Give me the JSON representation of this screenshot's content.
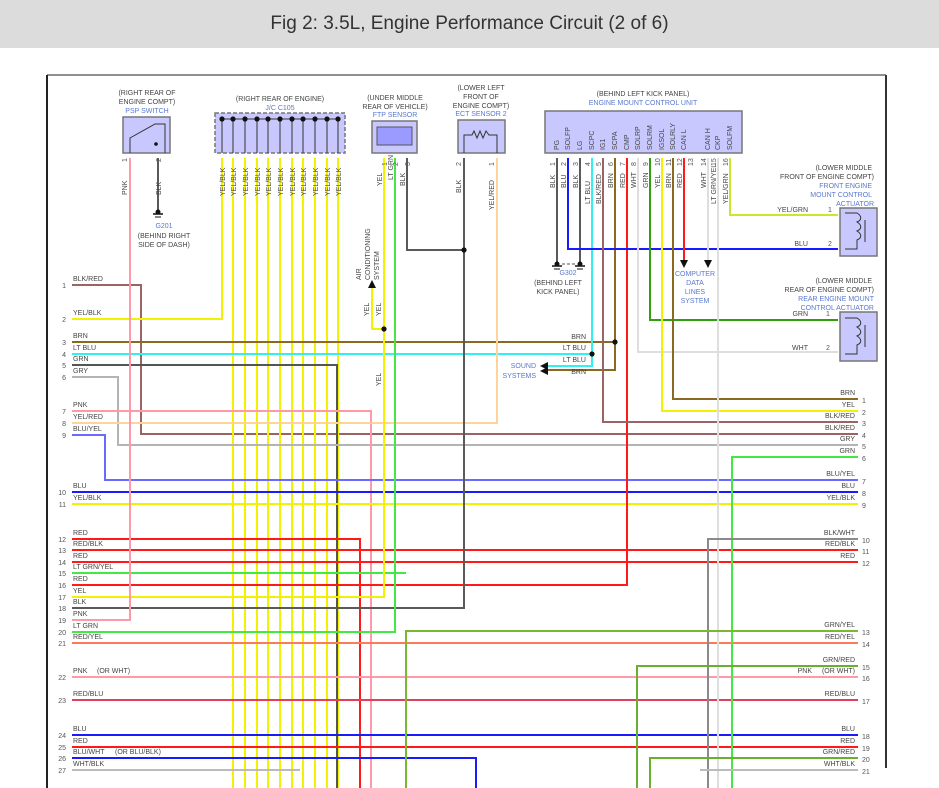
{
  "title": "Fig 2: 3.5L, Engine Performance Circuit (2 of 6)",
  "components": {
    "psp": {
      "loc1": "(RIGHT REAR OF",
      "loc2": "ENGINE COMPT)",
      "name": "PSP SWITCH",
      "pins": [
        "1",
        "2"
      ],
      "wires": [
        "PNK",
        "BLK"
      ]
    },
    "g201": {
      "name": "G201",
      "loc1": "(BEHIND RIGHT",
      "loc2": "SIDE OF DASH)"
    },
    "jc": {
      "loc1": "(RIGHT REAR OF ENGINE)",
      "name": "J/C C105",
      "wire": "YEL/BLK"
    },
    "ftp": {
      "loc1": "(UNDER MIDDLE",
      "loc2": "REAR OF VEHICLE)",
      "name": "FTP SENSOR",
      "pins": [
        "1",
        "2",
        "3"
      ],
      "wires": [
        "YEL",
        "LT GRN",
        "BLK"
      ]
    },
    "ect": {
      "loc1": "(LOWER LEFT",
      "loc2": "FRONT OF",
      "loc3": "ENGINE COMPT)",
      "name": "ECT SENSOR 2",
      "pins": [
        "2",
        "1"
      ],
      "wires": [
        "BLK",
        "YEL/RED"
      ]
    },
    "ecu": {
      "loc1": "(BEHIND LEFT KICK PANEL)",
      "name": "ENGINE MOUNT CONTROL UNIT",
      "pins": [
        {
          "num": "1",
          "name": "PG",
          "wire": "BLK"
        },
        {
          "num": "2",
          "name": "SOLFP",
          "wire": "BLU"
        },
        {
          "num": "3",
          "name": "LG",
          "wire": "BLK"
        },
        {
          "num": "4",
          "name": "SCPC",
          "wire": "LT BLU"
        },
        {
          "num": "5",
          "name": "IG1",
          "wire": "BLK/RED"
        },
        {
          "num": "6",
          "name": "SCPA",
          "wire": "BRN"
        },
        {
          "num": "7",
          "name": "CMP",
          "wire": "RED"
        },
        {
          "num": "8",
          "name": "SOLRP",
          "wire": "WHT"
        },
        {
          "num": "9",
          "name": "SOLRM",
          "wire": "GRN"
        },
        {
          "num": "10",
          "name": "IGSOL",
          "wire": "YEL"
        },
        {
          "num": "11",
          "name": "SOLRLY",
          "wire": "BRN"
        },
        {
          "num": "12",
          "name": "CAN L",
          "wire": "RED"
        },
        {
          "num": "13",
          "name": "",
          "wire": ""
        },
        {
          "num": "14",
          "name": "CAN H",
          "wire": "WHT"
        },
        {
          "num": "15",
          "name": "CKP",
          "wire": "LT GRN/YEL"
        },
        {
          "num": "16",
          "name": "SOLFM",
          "wire": "YEL/GRN"
        }
      ]
    },
    "g302": {
      "name": "G302",
      "loc1": "(BEHIND LEFT",
      "loc2": "KICK PANEL)"
    },
    "front_act": {
      "loc1": "(LOWER MIDDLE",
      "loc2": "FRONT OF ENGINE COMPT)",
      "name1": "FRONT ENGINE",
      "name2": "MOUNT CONTROL",
      "name3": "ACTUATOR",
      "pins": [
        "1",
        "2"
      ],
      "wires": [
        "YEL/GRN",
        "BLU"
      ]
    },
    "rear_act": {
      "loc1": "(LOWER MIDDLE",
      "loc2": "REAR OF ENGINE COMPT)",
      "name1": "REAR ENGINE MOUNT",
      "name2": "CONTROL ACTUATOR",
      "pins": [
        "1",
        "2"
      ],
      "wires": [
        "GRN",
        "WHT"
      ]
    },
    "ac": {
      "l1": "AIR",
      "l2": "CONDITIONING",
      "l3": "SYSTEM",
      "wire1": "YEL",
      "wire2": "YEL",
      "wire3": "YEL"
    },
    "sound": {
      "l1": "SOUND",
      "l2": "SYSTEMS",
      "w1": "BRN",
      "w2": "LT BLU",
      "w3": "LT BLU",
      "w4": "BRN"
    },
    "cdl": {
      "l1": "COMPUTER",
      "l2": "DATA",
      "l3": "LINES",
      "l4": "SYSTEM"
    }
  },
  "left_pins": [
    {
      "num": "1",
      "label": "BLK/RED"
    },
    {
      "num": "2",
      "label": "YEL/BLK"
    },
    {
      "num": "3",
      "label": "BRN"
    },
    {
      "num": "4",
      "label": "LT BLU"
    },
    {
      "num": "5",
      "label": "GRN"
    },
    {
      "num": "6",
      "label": "GRY"
    },
    {
      "num": "7",
      "label": "PNK"
    },
    {
      "num": "8",
      "label": "YEL/RED"
    },
    {
      "num": "9",
      "label": "BLU/YEL"
    },
    {
      "num": "10",
      "label": "BLU"
    },
    {
      "num": "11",
      "label": "YEL/BLK"
    },
    {
      "num": "12",
      "label": "RED"
    },
    {
      "num": "13",
      "label": "RED/BLK"
    },
    {
      "num": "14",
      "label": "RED"
    },
    {
      "num": "15",
      "label": "LT GRN/YEL"
    },
    {
      "num": "16",
      "label": "RED"
    },
    {
      "num": "17",
      "label": "YEL"
    },
    {
      "num": "18",
      "label": "BLK"
    },
    {
      "num": "19",
      "label": "PNK"
    },
    {
      "num": "20",
      "label": "LT GRN"
    },
    {
      "num": "21",
      "label": "RED/YEL"
    },
    {
      "num": "22",
      "label": "PNK",
      "note": "(OR WHT)"
    },
    {
      "num": "23",
      "label": "RED/BLU"
    },
    {
      "num": "24",
      "label": "BLU"
    },
    {
      "num": "25",
      "label": "RED"
    },
    {
      "num": "26",
      "label": "BLU/WHT",
      "note": "(OR BLU/BLK)"
    },
    {
      "num": "27",
      "label": "WHT/BLK"
    }
  ],
  "right_pins": [
    {
      "num": "1",
      "label": "BRN"
    },
    {
      "num": "2",
      "label": "YEL"
    },
    {
      "num": "3",
      "label": "BLK/RED"
    },
    {
      "num": "4",
      "label": "BLK/RED"
    },
    {
      "num": "5",
      "label": "GRY"
    },
    {
      "num": "6",
      "label": "GRN"
    },
    {
      "num": "7",
      "label": "BLU/YEL"
    },
    {
      "num": "8",
      "label": "BLU"
    },
    {
      "num": "9",
      "label": "YEL/BLK"
    },
    {
      "num": "10",
      "label": "BLK/WHT"
    },
    {
      "num": "11",
      "label": "RED/BLK"
    },
    {
      "num": "12",
      "label": "RED"
    },
    {
      "num": "13",
      "label": "GRN/YEL"
    },
    {
      "num": "14",
      "label": "RED/YEL"
    },
    {
      "num": "15",
      "label": "GRN/RED"
    },
    {
      "num": "16",
      "label": "(OR WHT)",
      "note": "PNK"
    },
    {
      "num": "17",
      "label": "RED/BLU"
    },
    {
      "num": "18",
      "label": "BLU"
    },
    {
      "num": "19",
      "label": "RED"
    },
    {
      "num": "20",
      "label": "GRN/RED"
    },
    {
      "num": "21",
      "label": "WHT/BLK"
    }
  ],
  "colors": {
    "header_bg": "#dcdcdc",
    "component_fill": "#c8c8ff",
    "component_text": "#5a78d0",
    "BLK": "#5a5a5a",
    "RED": "#ff1a1a",
    "BRN": "#8a6a1e",
    "YEL": "#f2f200",
    "GRN": "#2f9f10",
    "LT GRN": "#44e844",
    "BLU": "#1a1aff",
    "LT BLU": "#33f0f0",
    "PNK": "#ff99aa",
    "GRY": "#b4b4b4",
    "WHT": "#dedede",
    "BLK/RED": "#9a6464",
    "YEL/RED": "#ffd49a",
    "BLU/YEL": "#6a6aff",
    "RED/YEL": "#ff7a5a",
    "RED/BLU": "#e0405a",
    "GRN/YEL": "#7ab830",
    "GRN/RED": "#6ab030",
    "YEL/GRN": "#c8e830",
    "BLK/WHT": "#8a8a8a",
    "WHT/BLK": "#bbbbbb",
    "BLU/WHT": "#3333ff",
    "LT GRN/YEL": "#88ee44"
  }
}
